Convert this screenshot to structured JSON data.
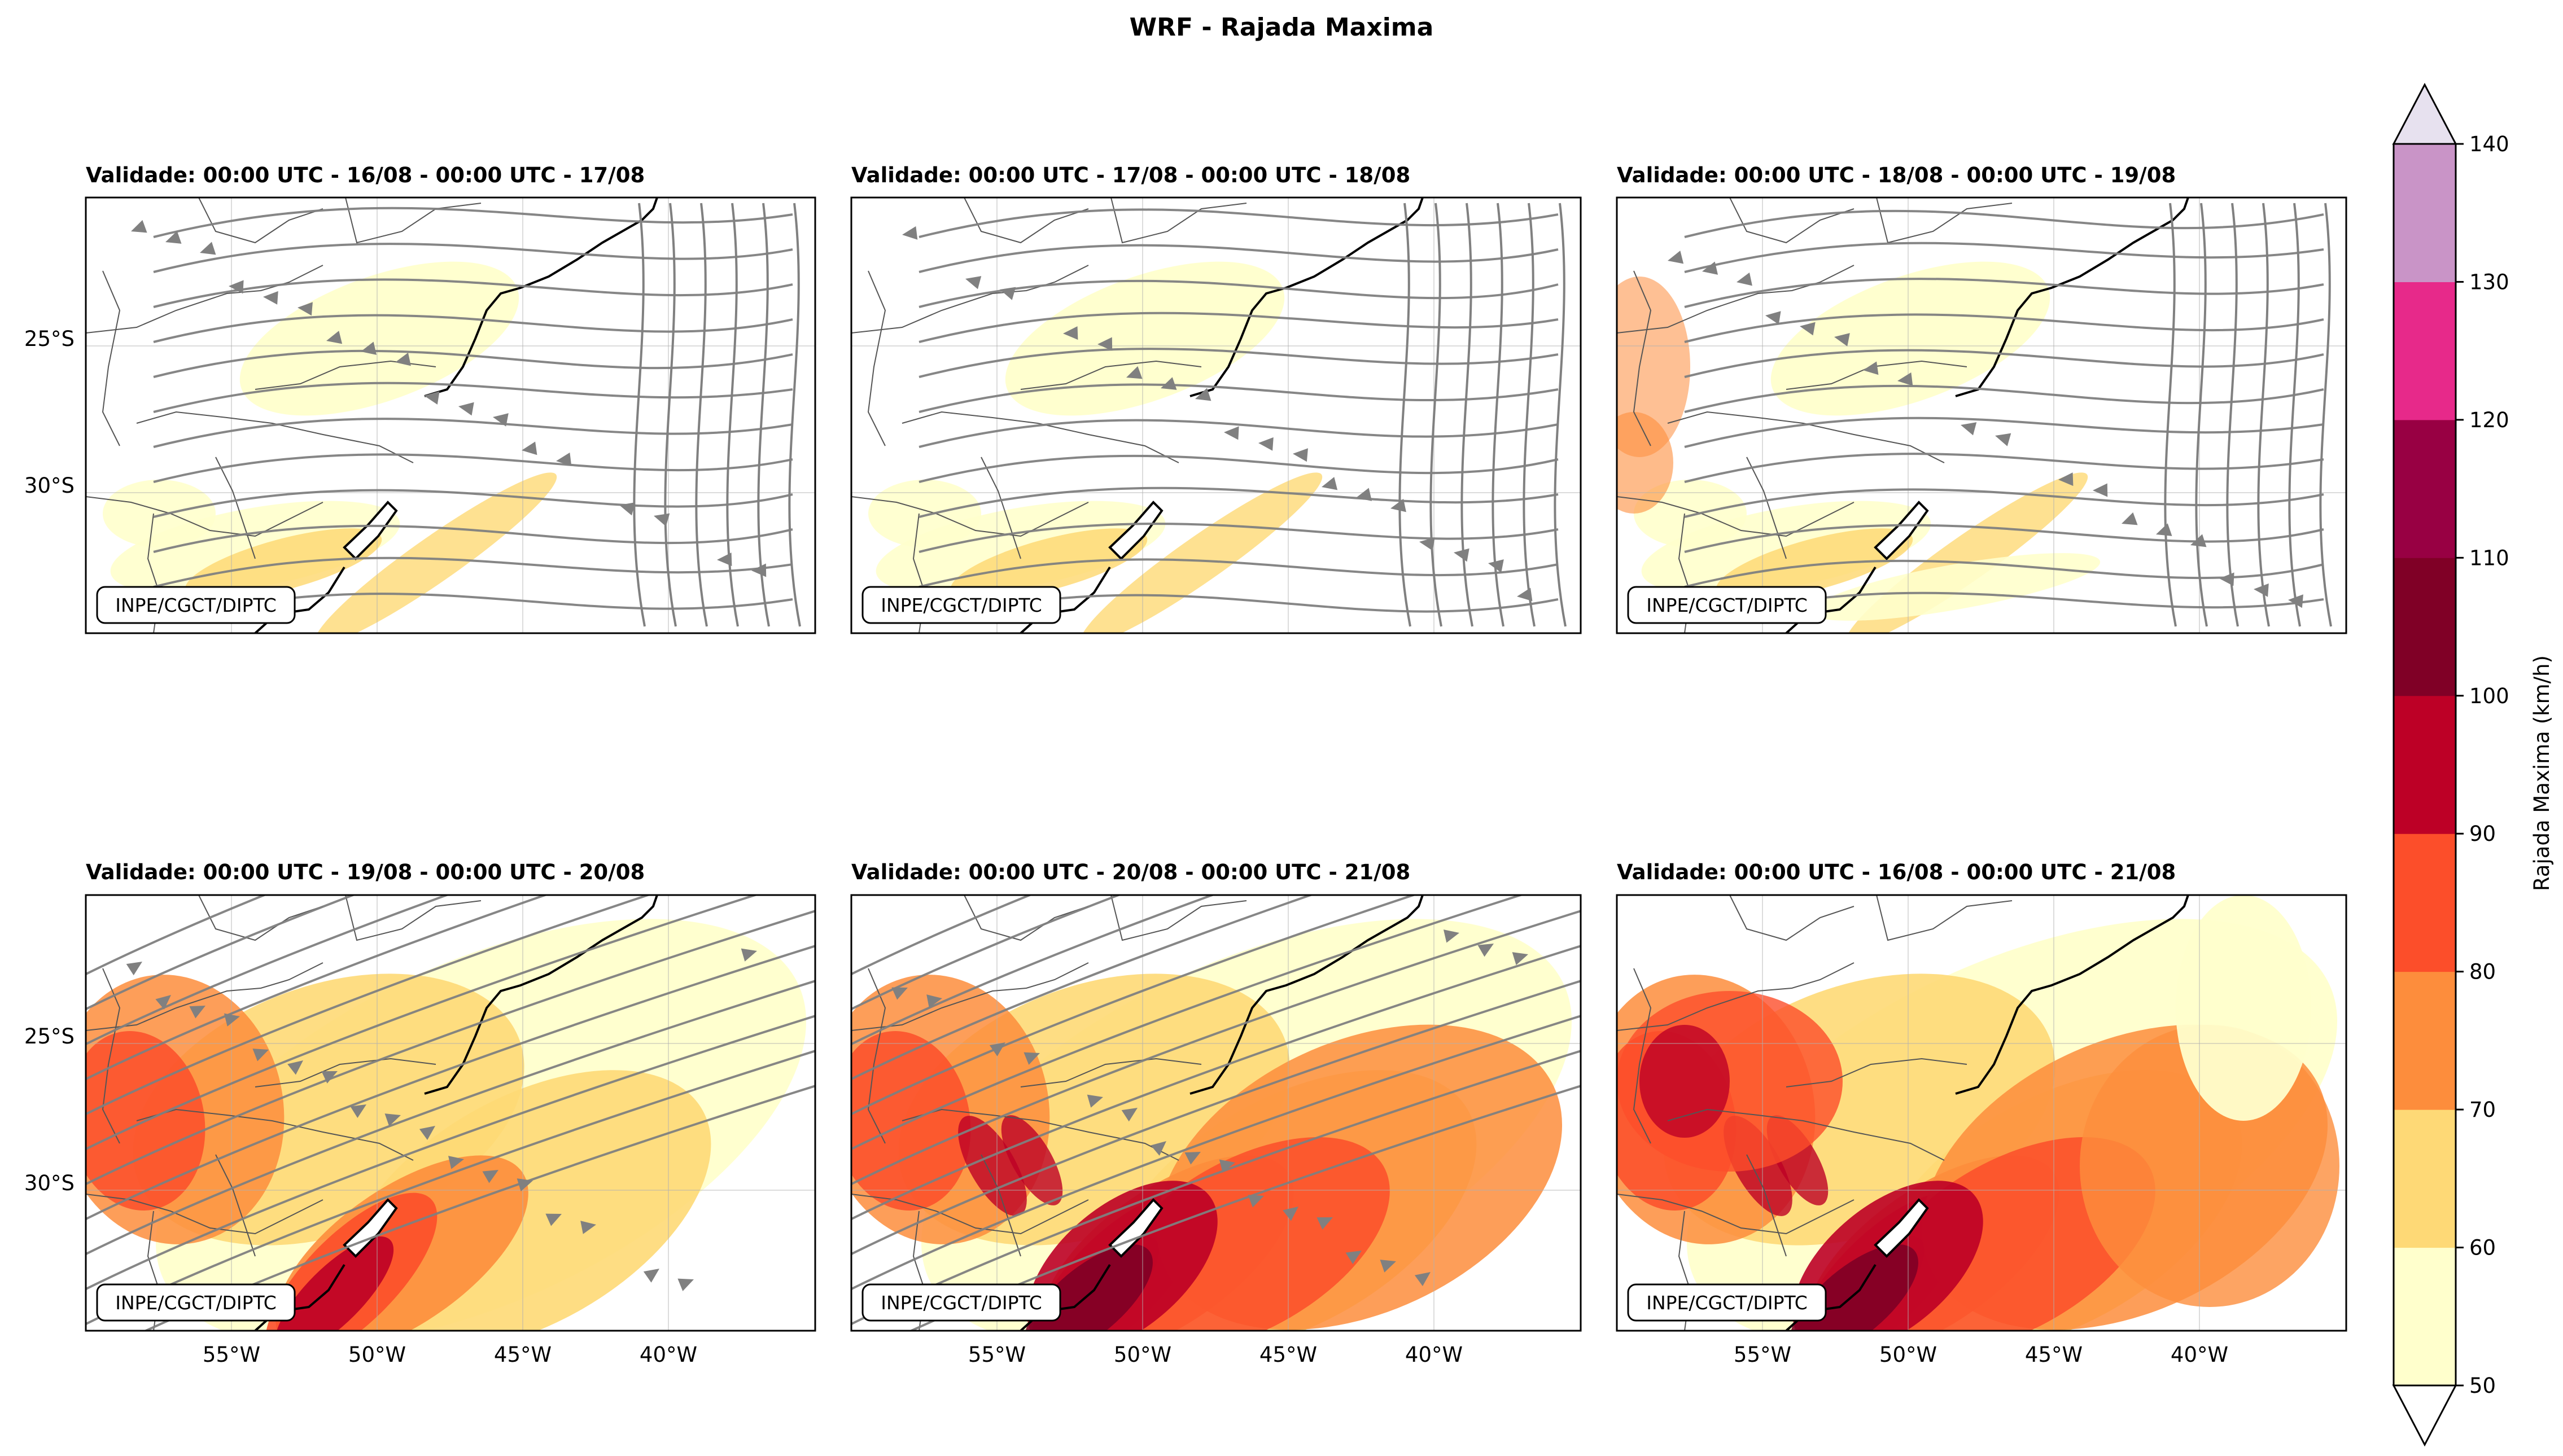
{
  "figure": {
    "title": "WRF - Rajada Maxima",
    "credit": "INPE/CGCT/DIPTC"
  },
  "panels": [
    {
      "title": "Validade: 00:00 UTC - 16/08 - 00:00 UTC - 17/08",
      "intensity": 0.18,
      "streamlines": true
    },
    {
      "title": "Validade: 00:00 UTC - 17/08 - 00:00 UTC - 18/08",
      "intensity": 0.18,
      "streamlines": true
    },
    {
      "title": "Validade: 00:00 UTC - 18/08 - 00:00 UTC - 19/08",
      "intensity": 0.28,
      "streamlines": true
    },
    {
      "title": "Validade: 00:00 UTC - 19/08 - 00:00 UTC - 20/08",
      "intensity": 0.55,
      "streamlines": true
    },
    {
      "title": "Validade: 00:00 UTC - 20/08 - 00:00 UTC - 21/08",
      "intensity": 0.75,
      "streamlines": true
    },
    {
      "title": "Validade: 00:00 UTC - 16/08 - 00:00 UTC - 21/08",
      "intensity": 0.85,
      "streamlines": false
    }
  ],
  "axes": {
    "lat_ticks": [
      "25°S",
      "30°S"
    ],
    "lon_ticks": [
      "55°W",
      "50°W",
      "45°W",
      "40°W"
    ]
  },
  "colorbar": {
    "label": "Rajada Maxima (km/h)",
    "ticks": [
      "50",
      "60",
      "70",
      "80",
      "90",
      "100",
      "110",
      "120",
      "130",
      "140"
    ],
    "colors": [
      "#ffffcc",
      "#fed976",
      "#fd8d3c",
      "#fc4e2a",
      "#bd0026",
      "#800026",
      "#980043",
      "#e7298a",
      "#c994c7"
    ],
    "extend_low_color": "#ffffff",
    "extend_high_color": "#e7e1ef",
    "units": "km/h"
  },
  "legend_colors": {
    "streamline": "#808080",
    "coastline": "#000000",
    "border": "#555555"
  }
}
